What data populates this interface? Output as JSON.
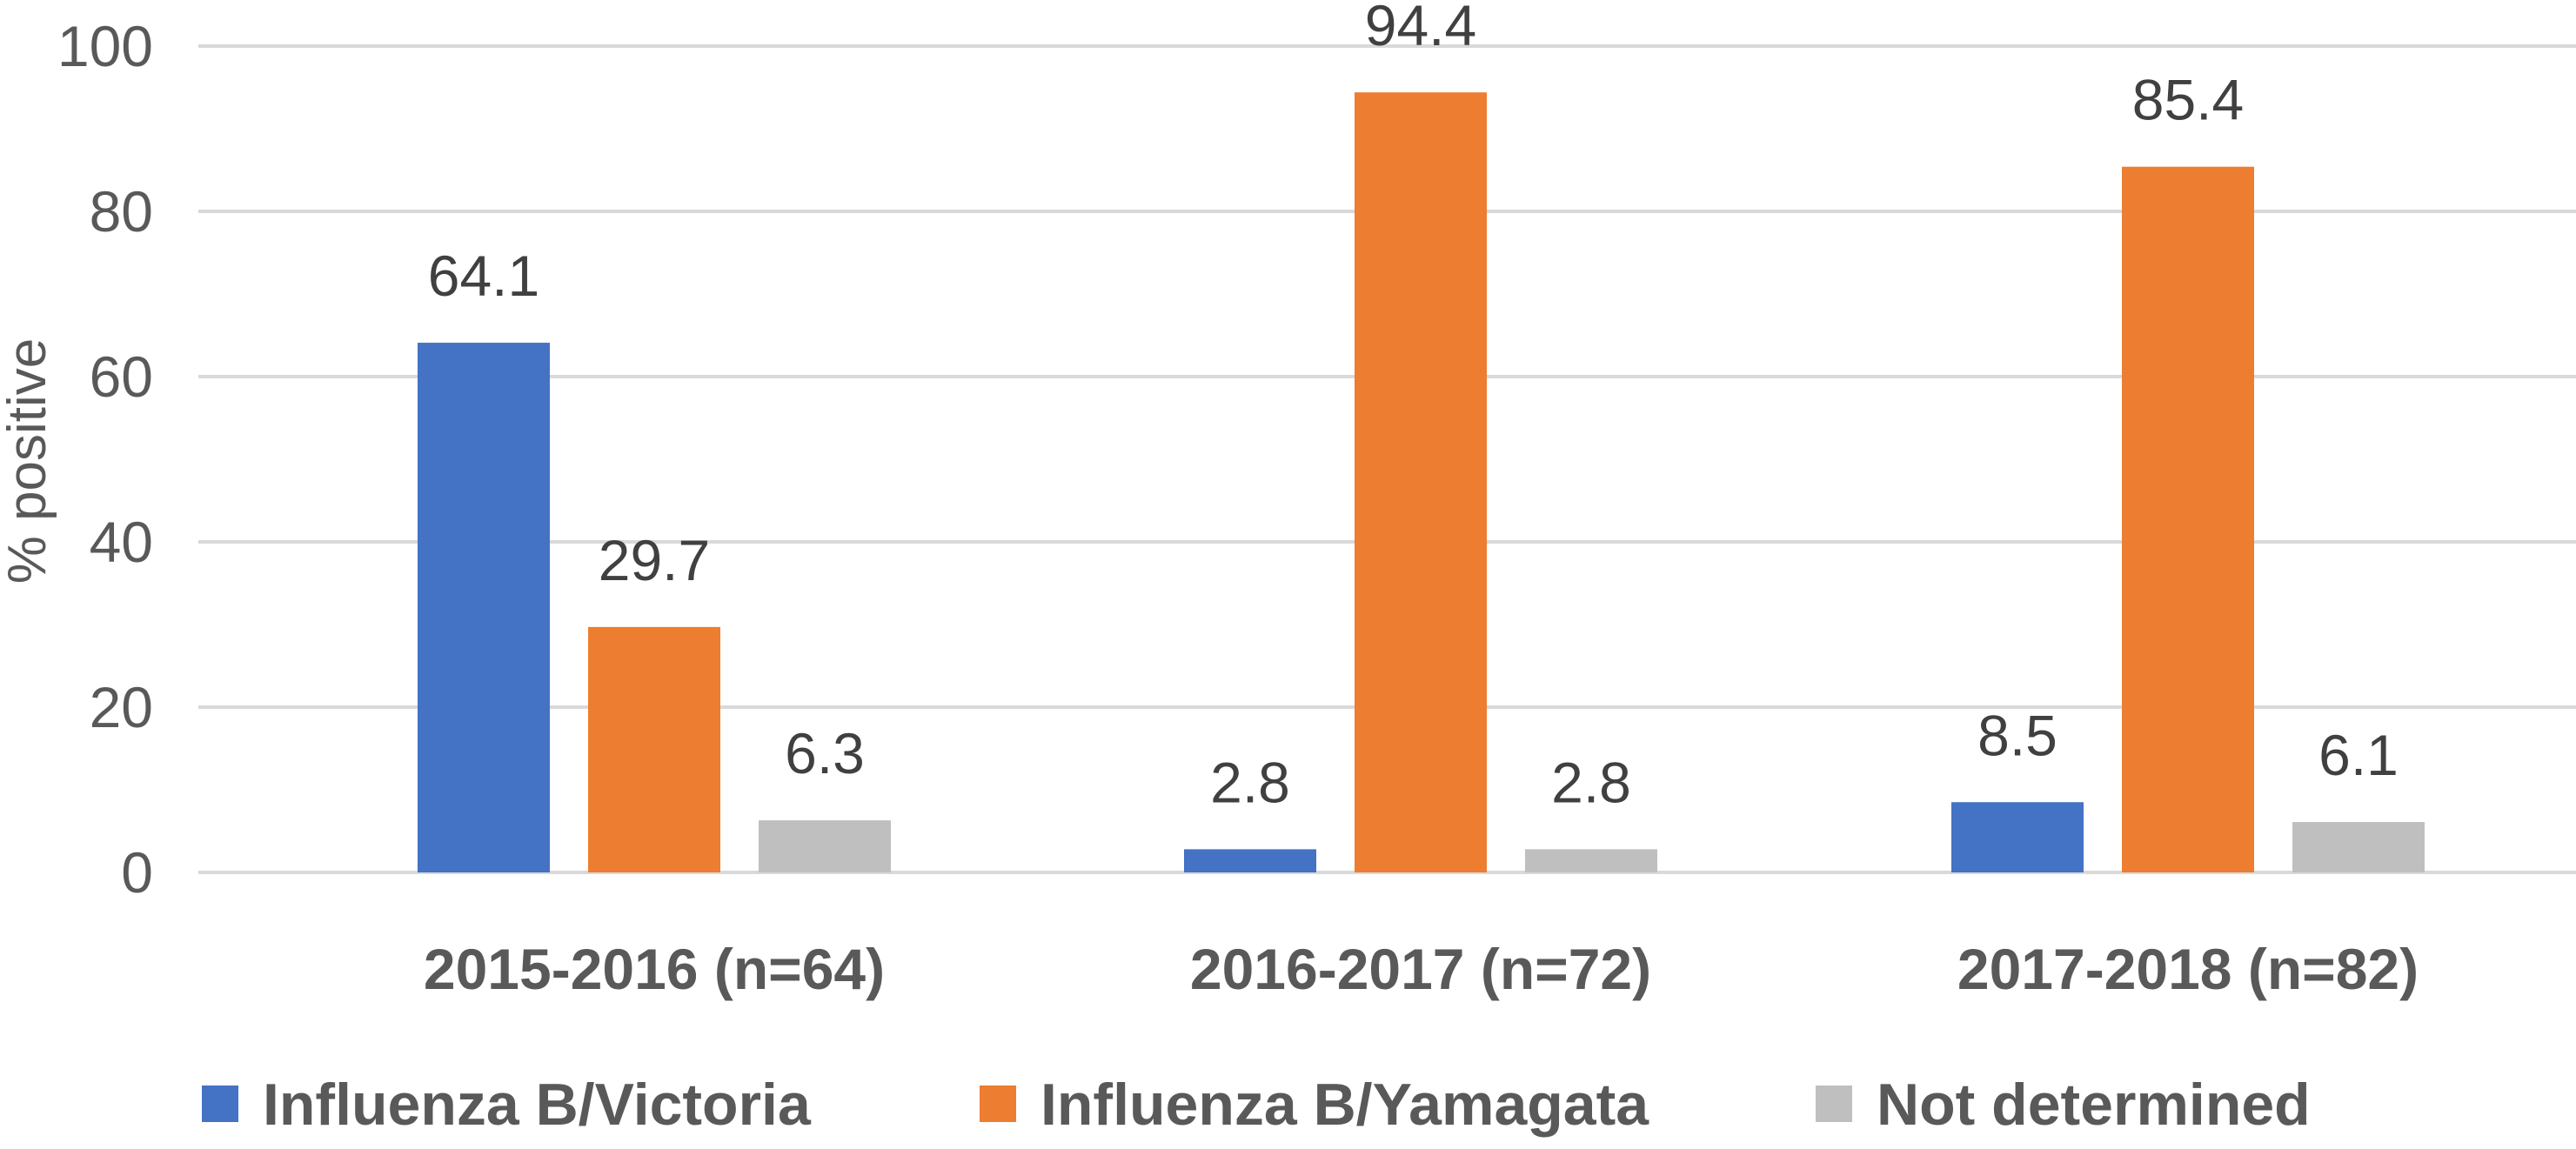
{
  "chart_data": {
    "type": "bar",
    "title": "",
    "xlabel": "",
    "ylabel": "% positive",
    "ylim": [
      0,
      100
    ],
    "yticks": [
      0,
      20,
      40,
      60,
      80,
      100
    ],
    "grid": true,
    "legend_position": "bottom",
    "categories": [
      "2015-2016 (n=64)",
      "2016-2017 (n=72)",
      "2017-2018 (n=82)"
    ],
    "series": [
      {
        "name": "Influenza B/Victoria",
        "color": "#4472c4",
        "values": [
          64.1,
          2.8,
          8.5
        ]
      },
      {
        "name": "Influenza B/Yamagata",
        "color": "#ed7d31",
        "values": [
          29.7,
          94.4,
          85.4
        ]
      },
      {
        "name": "Not determined",
        "color": "#bfbfbf",
        "values": [
          6.3,
          2.8,
          6.1
        ]
      }
    ]
  }
}
